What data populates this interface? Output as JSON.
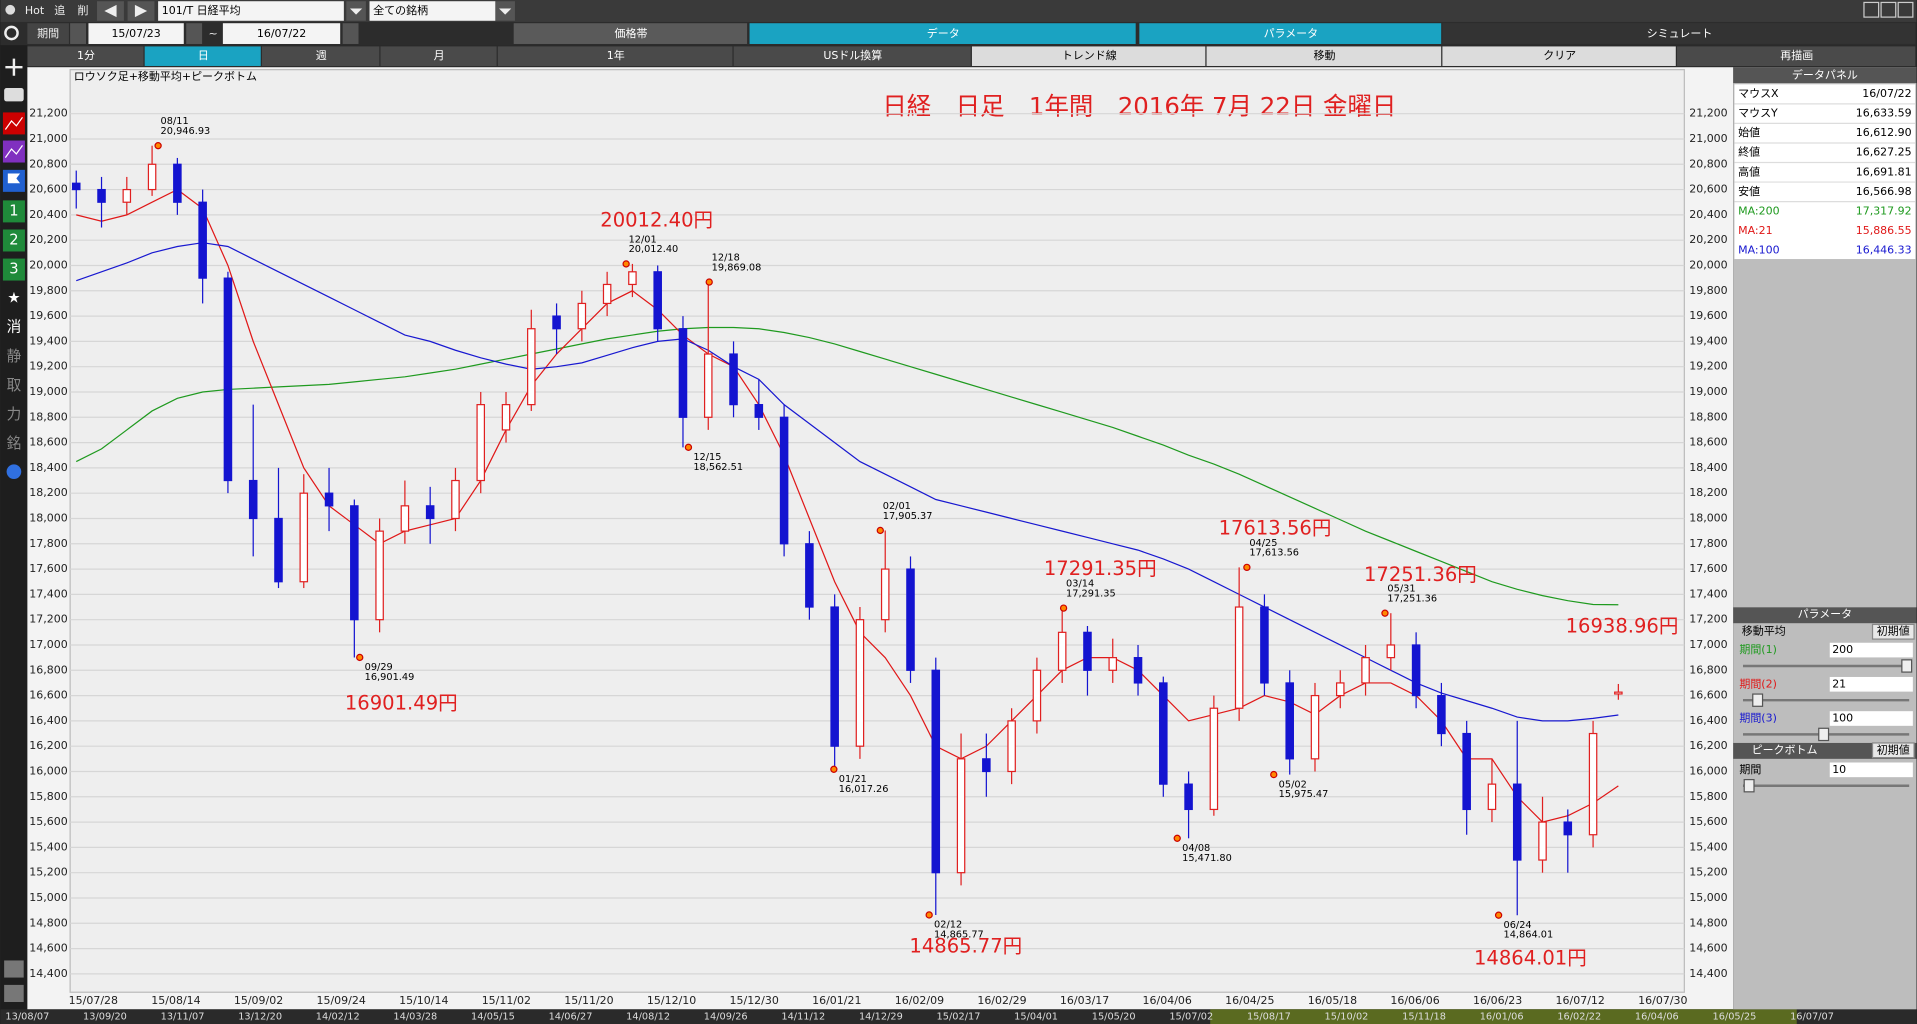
{
  "toolbar": {
    "hot": "Hot",
    "add": "追",
    "del": "削",
    "symbol": "101/T 日経平均",
    "universe": "全ての銘柄",
    "period_label": "期間",
    "from": "15/07/23",
    "tilde": "~",
    "to": "16/07/22",
    "tabs": [
      "価格帯",
      "データ",
      "パラメータ",
      "シミュレート"
    ],
    "buttons": [
      "1分",
      "日",
      "週",
      "月",
      "1年",
      "USドル換算",
      "トレンド線",
      "移動",
      "クリア",
      "再描画"
    ]
  },
  "sidebar": [
    "1",
    "2",
    "3",
    "★",
    "消",
    "静",
    "取",
    "力",
    "銘"
  ],
  "data_panel": {
    "title": "データパネル",
    "rows": [
      [
        "マウスX",
        "16/07/22"
      ],
      [
        "マウスY",
        "16,633.59"
      ],
      [
        "始値",
        "16,612.90"
      ],
      [
        "終値",
        "16,627.25"
      ],
      [
        "高値",
        "16,691.81"
      ],
      [
        "安値",
        "16,566.98"
      ]
    ],
    "ma_values": [
      "17,317.92",
      "15,886.55",
      "16,446.33"
    ]
  },
  "param_panel": {
    "title": "パラメータ",
    "ma_title": "移動平均",
    "reset": "初期値",
    "periods": [
      [
        "期間(1)",
        "200"
      ],
      [
        "期間(2)",
        "21"
      ],
      [
        "期間(3)",
        "100"
      ]
    ],
    "peak_title": "ピークボトム",
    "peak_period": [
      "期間",
      "10"
    ]
  },
  "chart_data": {
    "type": "candlestick",
    "title": "日経　日足　1年間　2016年 7月 22日 金曜日",
    "subtitle": "ロウソク足+移動平均+ピークボトム",
    "ylim": [
      14255,
      21548
    ],
    "yticks": [
      {
        "value": 14400,
        "label": "14,400"
      },
      {
        "value": 14600,
        "label": "14,600"
      },
      {
        "value": 14800,
        "label": "14,800"
      },
      {
        "value": 15000,
        "label": "15,000"
      },
      {
        "value": 15200,
        "label": "15,200"
      },
      {
        "value": 15400,
        "label": "15,400"
      },
      {
        "value": 15600,
        "label": "15,600"
      },
      {
        "value": 15800,
        "label": "15,800"
      },
      {
        "value": 16000,
        "label": "16,000"
      },
      {
        "value": 16200,
        "label": "16,200"
      },
      {
        "value": 16400,
        "label": "16,400"
      },
      {
        "value": 16600,
        "label": "16,600"
      },
      {
        "value": 16800,
        "label": "16,800"
      },
      {
        "value": 17000,
        "label": "17,000"
      },
      {
        "value": 17200,
        "label": "17,200"
      },
      {
        "value": 17400,
        "label": "17,400"
      },
      {
        "value": 17600,
        "label": "17,600"
      },
      {
        "value": 17800,
        "label": "17,800"
      },
      {
        "value": 18000,
        "label": "18,000"
      },
      {
        "value": 18200,
        "label": "18,200"
      },
      {
        "value": 18400,
        "label": "18,400"
      },
      {
        "value": 18600,
        "label": "18,600"
      },
      {
        "value": 18800,
        "label": "18,800"
      },
      {
        "value": 19000,
        "label": "19,000"
      },
      {
        "value": 19200,
        "label": "19,200"
      },
      {
        "value": 19400,
        "label": "19,400"
      },
      {
        "value": 19600,
        "label": "19,600"
      },
      {
        "value": 19800,
        "label": "19,800"
      },
      {
        "value": 20000,
        "label": "20,000"
      },
      {
        "value": 20200,
        "label": "20,200"
      },
      {
        "value": 20400,
        "label": "20,400"
      },
      {
        "value": 20600,
        "label": "20,600"
      },
      {
        "value": 20800,
        "label": "20,800"
      },
      {
        "value": 21000,
        "label": "21,000"
      },
      {
        "value": 21200,
        "label": "21,200"
      }
    ],
    "x_labels": [
      "15/07/28",
      "15/08/14",
      "15/09/02",
      "15/09/24",
      "15/10/14",
      "15/11/02",
      "15/11/20",
      "15/12/10",
      "15/12/30",
      "16/01/21",
      "16/02/09",
      "16/02/29",
      "16/03/17",
      "16/04/06",
      "16/04/25",
      "16/05/18",
      "16/06/06",
      "16/06/23",
      "16/07/12",
      "16/07/30"
    ],
    "overview_labels": [
      "13/08/07",
      "13/09/20",
      "13/11/07",
      "13/12/20",
      "14/02/12",
      "14/03/28",
      "14/05/15",
      "14/06/27",
      "14/08/12",
      "14/09/26",
      "14/11/12",
      "14/12/29",
      "15/02/17",
      "15/04/01",
      "15/05/20",
      "15/07/02",
      "15/08/17",
      "15/10/02",
      "15/11/18",
      "16/01/06",
      "16/02/22",
      "16/04/06",
      "16/05/25",
      "16/07/07"
    ],
    "candles": [
      [
        20650,
        20750,
        20450,
        20600
      ],
      [
        20600,
        20700,
        20300,
        20500
      ],
      [
        20500,
        20700,
        20400,
        20600
      ],
      [
        20600,
        20946.93,
        20550,
        20800
      ],
      [
        20800,
        20850,
        20400,
        20500
      ],
      [
        20500,
        20600,
        19700,
        19900
      ],
      [
        19900,
        19950,
        18200,
        18300
      ],
      [
        18300,
        18900,
        17700,
        18000
      ],
      [
        18000,
        18400,
        17450,
        17500
      ],
      [
        17500,
        18350,
        17450,
        18200
      ],
      [
        18200,
        18400,
        17900,
        18100
      ],
      [
        18100,
        18150,
        16901.49,
        17200
      ],
      [
        17200,
        18000,
        17100,
        17900
      ],
      [
        17900,
        18300,
        17800,
        18100
      ],
      [
        18100,
        18250,
        17800,
        18000
      ],
      [
        18000,
        18400,
        17900,
        18300
      ],
      [
        18300,
        19000,
        18200,
        18900
      ],
      [
        18700,
        19000,
        18600,
        18900
      ],
      [
        18900,
        19650,
        18850,
        19500
      ],
      [
        19600,
        19700,
        19300,
        19500
      ],
      [
        19500,
        19800,
        19400,
        19700
      ],
      [
        19700,
        19950,
        19600,
        19850
      ],
      [
        19850,
        20012.4,
        19750,
        19950
      ],
      [
        19950,
        20000,
        19400,
        19500
      ],
      [
        19500,
        19600,
        18562.51,
        18800
      ],
      [
        18800,
        19869.08,
        18700,
        19300
      ],
      [
        19300,
        19400,
        18800,
        18900
      ],
      [
        18900,
        19100,
        18700,
        18800
      ],
      [
        18800,
        18900,
        17700,
        17800
      ],
      [
        17800,
        17900,
        17200,
        17300
      ],
      [
        17300,
        17400,
        16017.26,
        16200
      ],
      [
        16200,
        17300,
        16100,
        17200
      ],
      [
        17200,
        17905.37,
        17100,
        17600
      ],
      [
        17600,
        17700,
        16700,
        16800
      ],
      [
        16800,
        16900,
        14865.77,
        15200
      ],
      [
        15200,
        16300,
        15100,
        16100
      ],
      [
        16100,
        16300,
        15800,
        16000
      ],
      [
        16000,
        16500,
        15900,
        16400
      ],
      [
        16400,
        16900,
        16300,
        16800
      ],
      [
        16800,
        17291.35,
        16700,
        17100
      ],
      [
        17100,
        17150,
        16600,
        16800
      ],
      [
        16800,
        17050,
        16700,
        16900
      ],
      [
        16900,
        17000,
        16600,
        16700
      ],
      [
        16700,
        16750,
        15800,
        15900
      ],
      [
        15900,
        16000,
        15471.8,
        15700
      ],
      [
        15700,
        16600,
        15650,
        16500
      ],
      [
        16500,
        17613.56,
        16400,
        17300
      ],
      [
        17300,
        17400,
        16600,
        16700
      ],
      [
        16700,
        16800,
        15975.47,
        16100
      ],
      [
        16100,
        16700,
        16000,
        16600
      ],
      [
        16600,
        16800,
        16500,
        16700
      ],
      [
        16700,
        17000,
        16600,
        16900
      ],
      [
        16900,
        17251.36,
        16800,
        17000
      ],
      [
        17000,
        17100,
        16500,
        16600
      ],
      [
        16600,
        16700,
        16200,
        16300
      ],
      [
        16300,
        16400,
        15500,
        15700
      ],
      [
        15700,
        16100,
        15600,
        15900
      ],
      [
        15900,
        16400,
        14864.01,
        15300
      ],
      [
        15300,
        15800,
        15200,
        15600
      ],
      [
        15600,
        15700,
        15200,
        15500
      ],
      [
        15500,
        16400,
        15400,
        16300
      ],
      [
        16612.9,
        16691.81,
        16566.98,
        16627.25
      ]
    ],
    "series": [
      {
        "name": "MA:200",
        "color": "#1f9a1f",
        "values": [
          18450,
          18550,
          18700,
          18850,
          18950,
          19000,
          19020,
          19030,
          19040,
          19050,
          19060,
          19080,
          19100,
          19120,
          19150,
          19180,
          19220,
          19260,
          19300,
          19340,
          19380,
          19420,
          19450,
          19480,
          19500,
          19510,
          19510,
          19500,
          19470,
          19430,
          19380,
          19320,
          19260,
          19200,
          19140,
          19080,
          19020,
          18960,
          18900,
          18840,
          18780,
          18720,
          18650,
          18580,
          18500,
          18430,
          18350,
          18260,
          18170,
          18080,
          17990,
          17900,
          17820,
          17740,
          17660,
          17580,
          17500,
          17440,
          17390,
          17350,
          17320,
          17317.92
        ]
      },
      {
        "name": "MA:21",
        "color": "#e01818",
        "values": [
          20400,
          20350,
          20400,
          20500,
          20600,
          20450,
          20000,
          19400,
          18900,
          18400,
          18100,
          17950,
          17800,
          17900,
          17950,
          18000,
          18300,
          18700,
          19050,
          19300,
          19500,
          19700,
          19800,
          19650,
          19450,
          19300,
          19200,
          18900,
          18500,
          18000,
          17500,
          17100,
          16900,
          16600,
          16200,
          16100,
          16200,
          16400,
          16600,
          16800,
          16900,
          16900,
          16800,
          16600,
          16400,
          16450,
          16500,
          16600,
          16550,
          16450,
          16600,
          16700,
          16700,
          16600,
          16400,
          16100,
          16100,
          15800,
          15600,
          15650,
          15750,
          15886.55
        ]
      },
      {
        "name": "MA:100",
        "color": "#1818d0",
        "values": [
          19880,
          19950,
          20020,
          20100,
          20150,
          20180,
          20150,
          20050,
          19950,
          19850,
          19750,
          19650,
          19550,
          19450,
          19400,
          19330,
          19270,
          19220,
          19180,
          19200,
          19230,
          19290,
          19350,
          19400,
          19420,
          19330,
          19200,
          19100,
          18900,
          18750,
          18600,
          18450,
          18350,
          18250,
          18150,
          18100,
          18050,
          18000,
          17950,
          17900,
          17850,
          17800,
          17750,
          17680,
          17600,
          17500,
          17400,
          17300,
          17200,
          17100,
          17000,
          16900,
          16800,
          16700,
          16620,
          16560,
          16500,
          16430,
          16400,
          16400,
          16420,
          16446.33
        ]
      }
    ],
    "peaks": [
      {
        "date": "08/11",
        "value": 20946.93,
        "label": "20,946.93"
      },
      {
        "date": "09/29",
        "value": 16901.49,
        "label": "16,901.49",
        "callout": "16901.49円"
      },
      {
        "date": "12/01",
        "value": 20012.4,
        "label": "20,012.40",
        "callout": "20012.40円"
      },
      {
        "date": "12/18",
        "value": 19869.08,
        "label": "19,869.08"
      },
      {
        "date": "12/15",
        "value": 18562.51,
        "label": "18,562.51"
      },
      {
        "date": "02/01",
        "value": 17905.37,
        "label": "17,905.37"
      },
      {
        "date": "01/21",
        "value": 16017.26,
        "label": "16,017.26"
      },
      {
        "date": "02/12",
        "value": 14865.77,
        "label": "14,865.77",
        "callout": "14865.77円"
      },
      {
        "date": "03/14",
        "value": 17291.35,
        "label": "17,291.35",
        "callout": "17291.35円"
      },
      {
        "date": "04/08",
        "value": 15471.8,
        "label": "15,471.80"
      },
      {
        "date": "04/25",
        "value": 17613.56,
        "label": "17,613.56",
        "callout": "17613.56円"
      },
      {
        "date": "05/02",
        "value": 15975.47,
        "label": "15,975.47"
      },
      {
        "date": "05/31",
        "value": 17251.36,
        "label": "17,251.36",
        "callout": "17251.36円"
      },
      {
        "date": "06/24",
        "value": 14864.01,
        "label": "14,864.01",
        "callout": "14864.01円"
      }
    ],
    "current_callout": "16938.96円"
  }
}
